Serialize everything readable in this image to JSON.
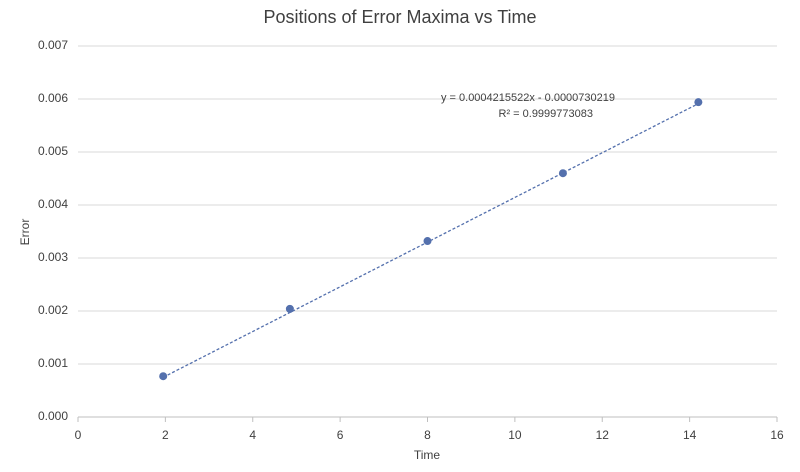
{
  "chart_data": {
    "type": "scatter",
    "title": "Positions of Error Maxima vs Time",
    "x_label": "Time",
    "y_label": "Error",
    "x": [
      1.95,
      4.85,
      8.0,
      11.1,
      14.2
    ],
    "values": [
      0.00077,
      0.00204,
      0.00332,
      0.0046,
      0.00594
    ],
    "color": "#5470ad",
    "xlim": [
      0,
      16
    ],
    "xticks": [
      0,
      2,
      4,
      6,
      8,
      10,
      12,
      14,
      16
    ],
    "ylim": [
      0,
      0.007
    ],
    "yticks": [
      {
        "value": 0,
        "label": "0.000"
      },
      {
        "value": 0.001,
        "label": "0.001"
      },
      {
        "value": 0.002,
        "label": "0.002"
      },
      {
        "value": 0.003,
        "label": "0.003"
      },
      {
        "value": 0.004,
        "label": "0.004"
      },
      {
        "value": 0.005,
        "label": "0.005"
      },
      {
        "value": 0.006,
        "label": "0.006"
      },
      {
        "value": 0.007,
        "label": "0.007"
      }
    ],
    "grid": true,
    "trendline": {
      "slope": 0.0004215522,
      "intercept": -7.30219e-05,
      "equation": "y = 0.0004215522x - 0.0000730219",
      "r_squared": 0.9999773083,
      "r_squared_label": "R² = 0.9999773083"
    }
  }
}
